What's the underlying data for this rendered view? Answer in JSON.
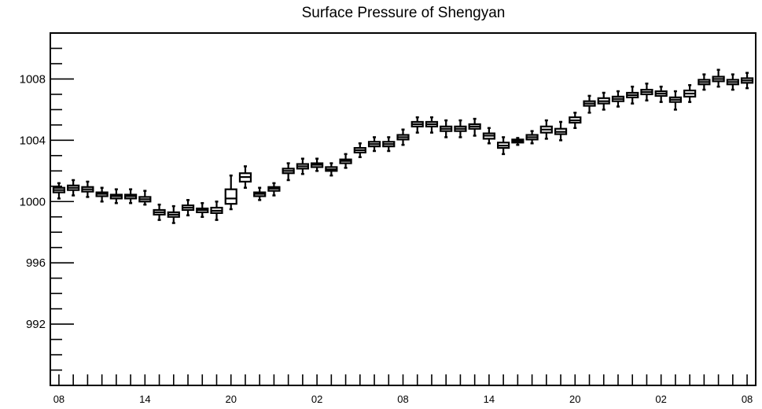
{
  "chart_data": {
    "type": "boxplot",
    "title": "Surface Pressure of Shengyan",
    "xlabel": "",
    "ylabel": "",
    "ylim": [
      988,
      1011
    ],
    "yticks": [
      992,
      996,
      1000,
      1004,
      1008
    ],
    "xlim": [
      -0.6,
      48.6
    ],
    "xticks": [
      {
        "pos": 0,
        "label": "08"
      },
      {
        "pos": 6,
        "label": "14"
      },
      {
        "pos": 12,
        "label": "20"
      },
      {
        "pos": 18,
        "label": "02"
      },
      {
        "pos": 24,
        "label": "08"
      },
      {
        "pos": 30,
        "label": "14"
      },
      {
        "pos": 36,
        "label": "20"
      },
      {
        "pos": 42,
        "label": "02"
      },
      {
        "pos": 48,
        "label": "08"
      }
    ],
    "grid": false,
    "legend": "none",
    "boxes": [
      {
        "x": 0,
        "whislo": 1000.2,
        "q1": 1000.6,
        "med": 1000.75,
        "q3": 1000.9,
        "whishi": 1001.2
      },
      {
        "x": 1,
        "whislo": 1000.4,
        "q1": 1000.75,
        "med": 1000.9,
        "q3": 1001.05,
        "whishi": 1001.4
      },
      {
        "x": 2,
        "whislo": 1000.3,
        "q1": 1000.65,
        "med": 1000.8,
        "q3": 1000.95,
        "whishi": 1001.3
      },
      {
        "x": 3,
        "whislo": 1000.0,
        "q1": 1000.35,
        "med": 1000.5,
        "q3": 1000.6,
        "whishi": 1000.9
      },
      {
        "x": 4,
        "whislo": 999.9,
        "q1": 1000.2,
        "med": 1000.35,
        "q3": 1000.45,
        "whishi": 1000.8
      },
      {
        "x": 5,
        "whislo": 999.9,
        "q1": 1000.2,
        "med": 1000.35,
        "q3": 1000.45,
        "whishi": 1000.8
      },
      {
        "x": 6,
        "whislo": 999.8,
        "q1": 1000.0,
        "med": 1000.15,
        "q3": 1000.3,
        "whishi": 1000.7
      },
      {
        "x": 7,
        "whislo": 998.8,
        "q1": 999.15,
        "med": 999.3,
        "q3": 999.45,
        "whishi": 999.8
      },
      {
        "x": 8,
        "whislo": 998.6,
        "q1": 999.0,
        "med": 999.15,
        "q3": 999.3,
        "whishi": 999.7
      },
      {
        "x": 9,
        "whislo": 999.1,
        "q1": 999.45,
        "med": 999.6,
        "q3": 999.75,
        "whishi": 1000.1
      },
      {
        "x": 10,
        "whislo": 999.0,
        "q1": 999.3,
        "med": 999.45,
        "q3": 999.55,
        "whishi": 999.9
      },
      {
        "x": 11,
        "whislo": 998.8,
        "q1": 999.25,
        "med": 999.4,
        "q3": 999.6,
        "whishi": 1000.0
      },
      {
        "x": 12,
        "whislo": 999.5,
        "q1": 999.85,
        "med": 1000.2,
        "q3": 1000.8,
        "whishi": 1001.7
      },
      {
        "x": 13,
        "whislo": 1000.9,
        "q1": 1001.3,
        "med": 1001.6,
        "q3": 1001.85,
        "whishi": 1002.3
      },
      {
        "x": 14,
        "whislo": 1000.1,
        "q1": 1000.35,
        "med": 1000.5,
        "q3": 1000.6,
        "whishi": 1000.9
      },
      {
        "x": 15,
        "whislo": 1000.4,
        "q1": 1000.7,
        "med": 1000.85,
        "q3": 1000.95,
        "whishi": 1001.2
      },
      {
        "x": 16,
        "whislo": 1001.4,
        "q1": 1001.85,
        "med": 1002.0,
        "q3": 1002.15,
        "whishi": 1002.5
      },
      {
        "x": 17,
        "whislo": 1001.8,
        "q1": 1002.15,
        "med": 1002.3,
        "q3": 1002.45,
        "whishi": 1002.8
      },
      {
        "x": 18,
        "whislo": 1002.0,
        "q1": 1002.25,
        "med": 1002.4,
        "q3": 1002.5,
        "whishi": 1002.8
      },
      {
        "x": 19,
        "whislo": 1001.7,
        "q1": 1002.0,
        "med": 1002.1,
        "q3": 1002.25,
        "whishi": 1002.5
      },
      {
        "x": 20,
        "whislo": 1002.2,
        "q1": 1002.5,
        "med": 1002.65,
        "q3": 1002.75,
        "whishi": 1003.1
      },
      {
        "x": 21,
        "whislo": 1002.9,
        "q1": 1003.2,
        "med": 1003.35,
        "q3": 1003.5,
        "whishi": 1003.8
      },
      {
        "x": 22,
        "whislo": 1003.3,
        "q1": 1003.6,
        "med": 1003.75,
        "q3": 1003.9,
        "whishi": 1004.2
      },
      {
        "x": 23,
        "whislo": 1003.3,
        "q1": 1003.6,
        "med": 1003.75,
        "q3": 1003.9,
        "whishi": 1004.2
      },
      {
        "x": 24,
        "whislo": 1003.7,
        "q1": 1004.05,
        "med": 1004.2,
        "q3": 1004.35,
        "whishi": 1004.7
      },
      {
        "x": 25,
        "whislo": 1004.5,
        "q1": 1004.9,
        "med": 1005.05,
        "q3": 1005.2,
        "whishi": 1005.5
      },
      {
        "x": 26,
        "whislo": 1004.5,
        "q1": 1004.9,
        "med": 1005.05,
        "q3": 1005.2,
        "whishi": 1005.5
      },
      {
        "x": 27,
        "whislo": 1004.2,
        "q1": 1004.6,
        "med": 1004.75,
        "q3": 1004.9,
        "whishi": 1005.3
      },
      {
        "x": 28,
        "whislo": 1004.2,
        "q1": 1004.6,
        "med": 1004.75,
        "q3": 1004.9,
        "whishi": 1005.3
      },
      {
        "x": 29,
        "whislo": 1004.3,
        "q1": 1004.75,
        "med": 1004.9,
        "q3": 1005.05,
        "whishi": 1005.4
      },
      {
        "x": 30,
        "whislo": 1003.8,
        "q1": 1004.1,
        "med": 1004.3,
        "q3": 1004.45,
        "whishi": 1004.8
      },
      {
        "x": 31,
        "whislo": 1003.1,
        "q1": 1003.5,
        "med": 1003.65,
        "q3": 1003.85,
        "whishi": 1004.2
      },
      {
        "x": 32,
        "whislo": 1003.7,
        "q1": 1003.85,
        "med": 1003.95,
        "q3": 1004.05,
        "whishi": 1004.15
      },
      {
        "x": 33,
        "whislo": 1003.8,
        "q1": 1004.05,
        "med": 1004.2,
        "q3": 1004.35,
        "whishi": 1004.6
      },
      {
        "x": 34,
        "whislo": 1004.1,
        "q1": 1004.5,
        "med": 1004.7,
        "q3": 1004.9,
        "whishi": 1005.3
      },
      {
        "x": 35,
        "whislo": 1004.0,
        "q1": 1004.4,
        "med": 1004.55,
        "q3": 1004.75,
        "whishi": 1005.2
      },
      {
        "x": 36,
        "whislo": 1004.8,
        "q1": 1005.15,
        "med": 1005.3,
        "q3": 1005.5,
        "whishi": 1005.8
      },
      {
        "x": 37,
        "whislo": 1005.8,
        "q1": 1006.25,
        "med": 1006.4,
        "q3": 1006.55,
        "whishi": 1006.9
      },
      {
        "x": 38,
        "whislo": 1006.0,
        "q1": 1006.4,
        "med": 1006.55,
        "q3": 1006.75,
        "whishi": 1007.1
      },
      {
        "x": 39,
        "whislo": 1006.2,
        "q1": 1006.55,
        "med": 1006.7,
        "q3": 1006.85,
        "whishi": 1007.2
      },
      {
        "x": 40,
        "whislo": 1006.4,
        "q1": 1006.8,
        "med": 1006.95,
        "q3": 1007.1,
        "whishi": 1007.5
      },
      {
        "x": 41,
        "whislo": 1006.6,
        "q1": 1007.0,
        "med": 1007.15,
        "q3": 1007.3,
        "whishi": 1007.7
      },
      {
        "x": 42,
        "whislo": 1006.5,
        "q1": 1006.9,
        "med": 1007.05,
        "q3": 1007.2,
        "whishi": 1007.5
      },
      {
        "x": 43,
        "whislo": 1006.0,
        "q1": 1006.5,
        "med": 1006.65,
        "q3": 1006.8,
        "whishi": 1007.2
      },
      {
        "x": 44,
        "whislo": 1006.5,
        "q1": 1006.85,
        "med": 1007.05,
        "q3": 1007.25,
        "whishi": 1007.6
      },
      {
        "x": 45,
        "whislo": 1007.3,
        "q1": 1007.65,
        "med": 1007.8,
        "q3": 1007.95,
        "whishi": 1008.3
      },
      {
        "x": 46,
        "whislo": 1007.5,
        "q1": 1007.85,
        "med": 1008.0,
        "q3": 1008.15,
        "whishi": 1008.6
      },
      {
        "x": 47,
        "whislo": 1007.3,
        "q1": 1007.65,
        "med": 1007.8,
        "q3": 1007.95,
        "whishi": 1008.3
      },
      {
        "x": 48,
        "whislo": 1007.4,
        "q1": 1007.75,
        "med": 1007.9,
        "q3": 1008.05,
        "whishi": 1008.4
      }
    ]
  }
}
